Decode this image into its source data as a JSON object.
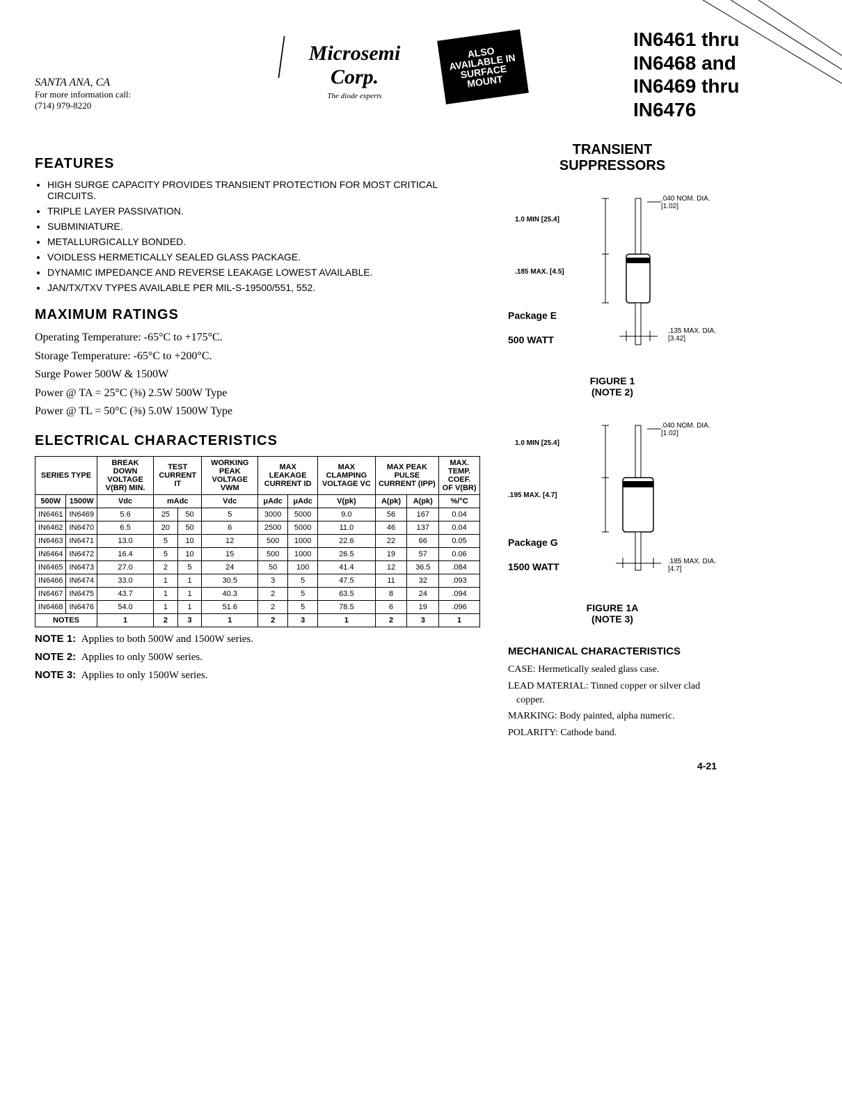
{
  "header": {
    "city": "SANTA ANA, CA",
    "phone_label": "For more information call:",
    "phone": "(714) 979-8220",
    "company": "Microsemi Corp.",
    "tagline": "The diode experts",
    "badge_line1": "ALSO",
    "badge_line2": "AVAILABLE IN",
    "badge_line3": "SURFACE",
    "badge_line4": "MOUNT",
    "part_title_l1": "IN6461 thru",
    "part_title_l2": "IN6468 and",
    "part_title_l3": "IN6469 thru",
    "part_title_l4": "IN6476"
  },
  "features": {
    "title": "FEATURES",
    "items": [
      "HIGH SURGE CAPACITY PROVIDES TRANSIENT PROTECTION FOR MOST CRITICAL CIRCUITS.",
      "TRIPLE LAYER PASSIVATION.",
      "SUBMINIATURE.",
      "METALLURGICALLY BONDED.",
      "VOIDLESS HERMETICALLY SEALED GLASS PACKAGE.",
      "DYNAMIC IMPEDANCE AND REVERSE LEAKAGE LOWEST AVAILABLE.",
      "JAN/TX/TXV TYPES AVAILABLE PER MIL-S-19500/551, 552."
    ]
  },
  "ratings": {
    "title": "MAXIMUM RATINGS",
    "lines": [
      "Operating Temperature: -65°C to +175°C.",
      "Storage Temperature: -65°C to +200°C.",
      "Surge Power 500W & 1500W",
      "Power @ TA = 25°C (⅜) 2.5W 500W Type",
      "Power @ TL = 50°C (⅜) 5.0W 1500W Type"
    ]
  },
  "electrical": {
    "title": "ELECTRICAL CHARACTERISTICS",
    "headers": {
      "series": "SERIES TYPE",
      "bdv": "BREAK DOWN VOLTAGE V(BR) MIN.",
      "test": "TEST CURRENT IT",
      "wpv": "WORKING PEAK VOLTAGE VWM",
      "leak": "MAX LEAKAGE CURRENT ID",
      "clamp": "MAX CLAMPING VOLTAGE VC",
      "ppc": "MAX PEAK PULSE CURRENT (IPP)",
      "temp": "MAX. TEMP. COEF. OF V(BR)"
    },
    "subheaders": {
      "w500": "500W",
      "w1500": "1500W",
      "vdc": "Vdc",
      "madc": "mAdc",
      "vdc2": "Vdc",
      "uadc": "μAdc",
      "uadc2": "μAdc",
      "vpk": "V(pk)",
      "apk": "A(pk)",
      "apk2": "A(pk)",
      "pct": "%/°C"
    },
    "rows": [
      [
        "IN6461",
        "IN6469",
        "5.6",
        "25",
        "50",
        "5",
        "3000",
        "5000",
        "9.0",
        "56",
        "167",
        "0.04"
      ],
      [
        "IN6462",
        "IN6470",
        "6.5",
        "20",
        "50",
        "6",
        "2500",
        "5000",
        "11.0",
        "46",
        "137",
        "0.04"
      ],
      [
        "IN6463",
        "IN6471",
        "13.0",
        "5",
        "10",
        "12",
        "500",
        "1000",
        "22.6",
        "22",
        "66",
        "0.05"
      ],
      [
        "IN6464",
        "IN6472",
        "16.4",
        "5",
        "10",
        "15",
        "500",
        "1000",
        "26.5",
        "19",
        "57",
        "0.06"
      ],
      [
        "IN6465",
        "IN6473",
        "27.0",
        "2",
        "5",
        "24",
        "50",
        "100",
        "41.4",
        "12",
        "36.5",
        ".084"
      ],
      [
        "IN6466",
        "IN6474",
        "33.0",
        "1",
        "1",
        "30.5",
        "3",
        "5",
        "47.5",
        "11",
        "32",
        ".093"
      ],
      [
        "IN6467",
        "IN6475",
        "43.7",
        "1",
        "1",
        "40.3",
        "2",
        "5",
        "63.5",
        "8",
        "24",
        ".094"
      ],
      [
        "IN6468",
        "IN6476",
        "54.0",
        "1",
        "1",
        "51.6",
        "2",
        "5",
        "78.5",
        "6",
        "19",
        ".096"
      ]
    ],
    "notes_row_label": "NOTES",
    "notes_row": [
      "1",
      "2",
      "3",
      "1",
      "2",
      "3",
      "1",
      "2",
      "3",
      "1"
    ]
  },
  "notes": {
    "n1_label": "NOTE 1:",
    "n1": "Applies to both 500W and 1500W series.",
    "n2_label": "NOTE 2:",
    "n2": "Applies to only 500W series.",
    "n3_label": "NOTE 3:",
    "n3": "Applies to only 1500W series."
  },
  "right": {
    "trans_title1": "TRANSIENT",
    "trans_title2": "SUPPRESSORS",
    "pkg1": {
      "dia_nom": ".040 NOM. DIA. [1.02]",
      "lead_min": "1.0 MIN [25.4]",
      "body_len": ".185 MAX. [4.5]",
      "label": "Package E",
      "watt": "500 WATT",
      "body_dia": ".135 MAX. DIA. [3.42]",
      "fig": "FIGURE 1",
      "note": "(NOTE 2)"
    },
    "pkg2": {
      "dia_nom": ".040 NOM. DIA. [1.02]",
      "lead_min": "1.0 MIN [25.4]",
      "body_len": ".195 MAX. [4.7]",
      "label": "Package G",
      "watt": "1500 WATT",
      "body_dia": ".185 MAX. DIA. [4.7]",
      "fig": "FIGURE 1A",
      "note": "(NOTE 3)"
    },
    "mech": {
      "title": "MECHANICAL CHARACTERISTICS",
      "case_label": "CASE:",
      "case": "Hermetically sealed glass case.",
      "lead_label": "LEAD MATERIAL:",
      "lead": "Tinned copper or silver clad copper.",
      "mark_label": "MARKING:",
      "mark": "Body painted, alpha numeric.",
      "pol_label": "POLARITY:",
      "pol": "Cathode band."
    }
  },
  "page": "4-21",
  "colors": {
    "black": "#000000",
    "white": "#ffffff"
  }
}
